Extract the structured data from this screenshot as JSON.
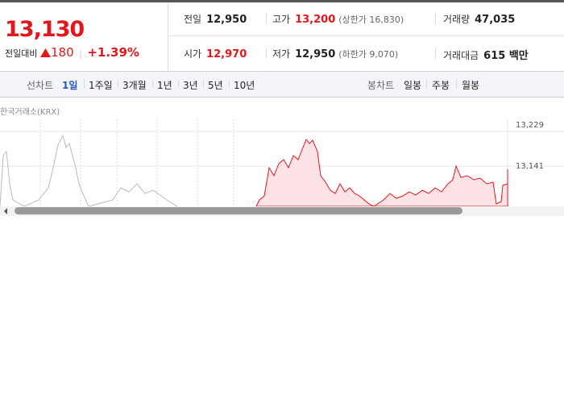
{
  "quote": {
    "price": "13,130",
    "change_label": "전일대비",
    "change": "180",
    "change_pct": "+1.39%"
  },
  "summary": {
    "rows": [
      [
        {
          "label": "전일",
          "value": "12,950"
        },
        {
          "label": "고가",
          "value": "13,200",
          "note": "(상한가 16,830)"
        },
        {
          "label": "거래량",
          "value": "47,035"
        }
      ],
      [
        {
          "label": "시가",
          "value": "12,970"
        },
        {
          "label": "저가",
          "value": "12,950",
          "note": "(하한가 9,070)"
        },
        {
          "label": "거래대금",
          "value": "615 백만"
        }
      ]
    ]
  },
  "toolbar": {
    "line_label": "선차트",
    "line_periods": [
      "1일",
      "1주일",
      "3개월",
      "1년",
      "3년",
      "5년",
      "10년"
    ],
    "candle_label": "봉차트",
    "candle_periods": [
      "일봉",
      "주봉",
      "월봉"
    ]
  },
  "chart": {
    "source": "한국거래소(KRX)",
    "price_ticks": [
      "13,229",
      "13,141"
    ]
  }
}
